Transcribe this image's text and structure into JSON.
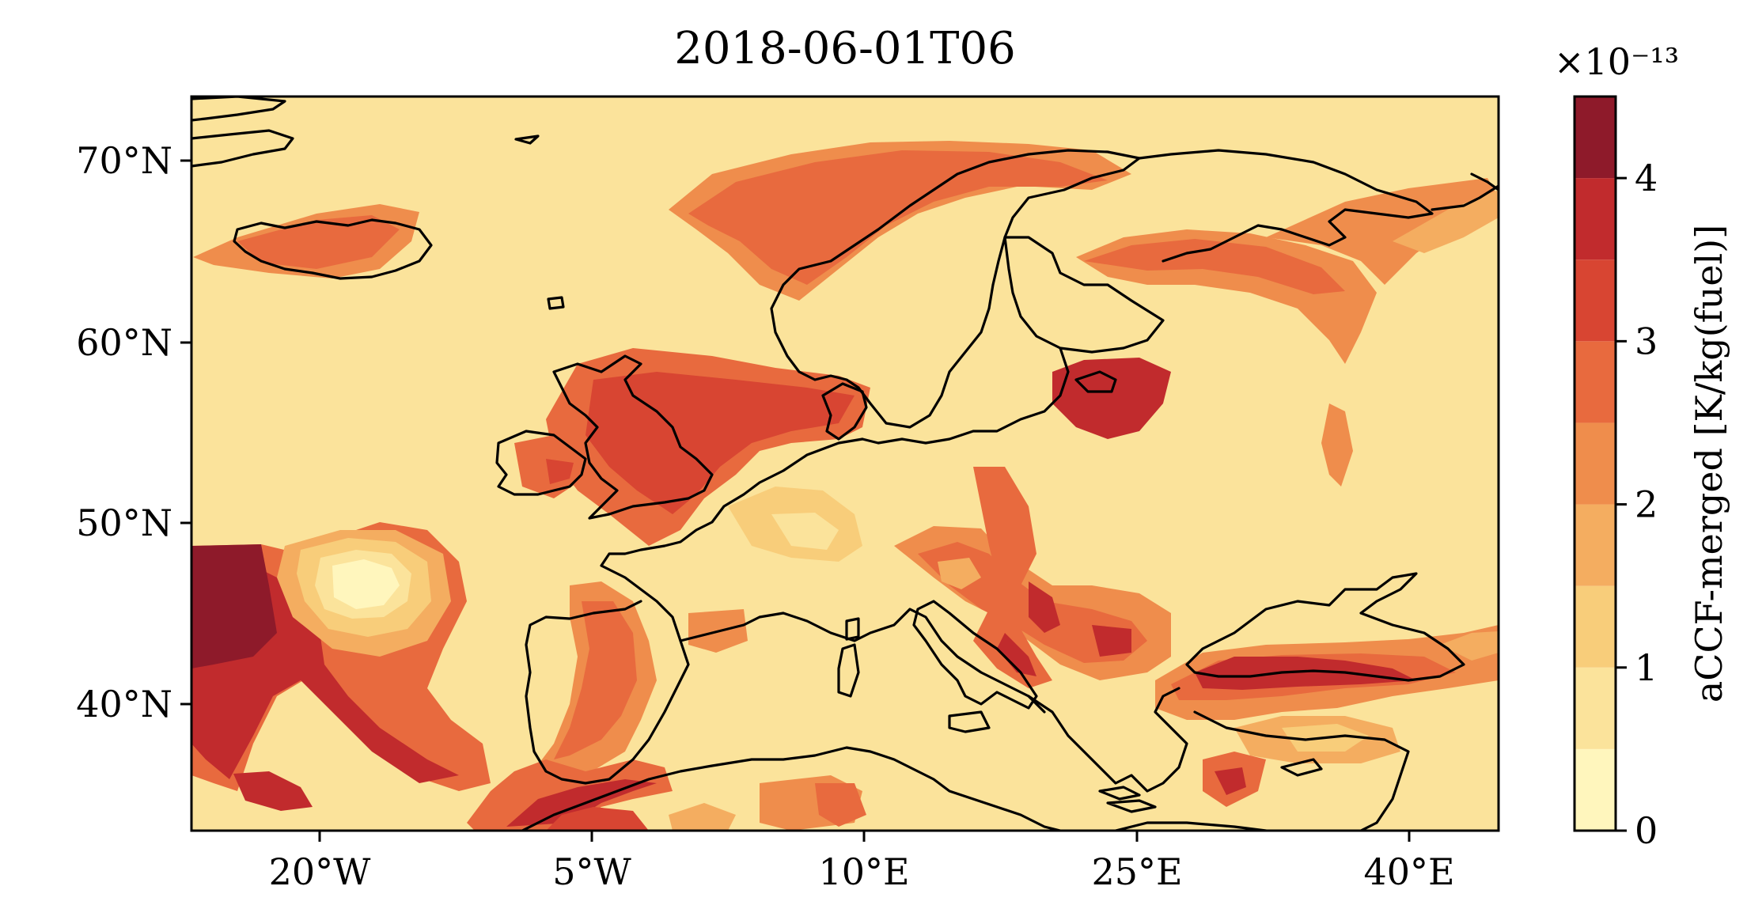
{
  "figure": {
    "title": "2018-06-01T06",
    "colorbar": {
      "label": "aCCF-merged [K/kg(fuel)]",
      "exponent_label": "×10⁻¹³",
      "ticks": [
        "0",
        "1",
        "2",
        "3",
        "4"
      ],
      "levels": [
        0,
        0.5,
        1,
        1.5,
        2,
        2.5,
        3,
        3.5,
        4,
        4.5
      ],
      "colors": [
        "#fff6bd",
        "#fbe39b",
        "#f8cd7a",
        "#f4ad60",
        "#ef8d4c",
        "#e86a3e",
        "#d84532",
        "#c12b2d",
        "#8e1a2a"
      ]
    },
    "axes": {
      "x_ticks": [
        "20°W",
        "5°W",
        "10°E",
        "25°E",
        "40°E"
      ],
      "y_ticks": [
        "70°N",
        "60°N",
        "50°N",
        "40°N"
      ],
      "lon_range": [
        -27,
        45
      ],
      "lat_range": [
        33,
        73.5
      ]
    }
  }
}
